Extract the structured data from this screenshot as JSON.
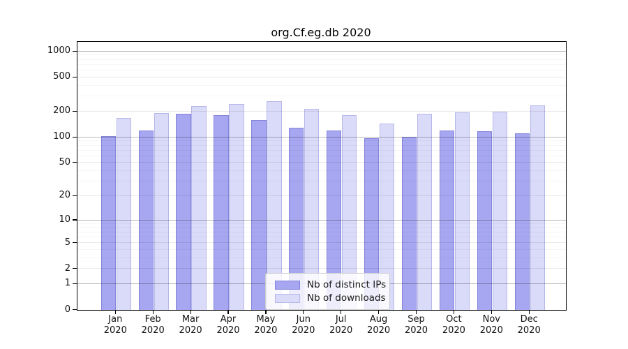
{
  "chart_data": {
    "type": "bar",
    "title": "org.Cf.eg.db 2020",
    "x": {
      "months": [
        "Jan",
        "Feb",
        "Mar",
        "Apr",
        "May",
        "Jun",
        "Jul",
        "Aug",
        "Sep",
        "Oct",
        "Nov",
        "Dec"
      ],
      "year": "2020"
    },
    "y_axis": {
      "scale": "log1p",
      "ticks": [
        0,
        1,
        2,
        5,
        10,
        20,
        50,
        100,
        200,
        500,
        1000
      ],
      "minor_ticks": [
        3,
        4,
        6,
        7,
        8,
        9,
        30,
        40,
        60,
        70,
        80,
        90,
        300,
        400,
        600,
        700,
        800,
        900
      ],
      "emphasized_ticks": [
        1,
        10,
        100,
        1000
      ],
      "range_max": 1300
    },
    "series": [
      {
        "name": "Nb of distinct IPs",
        "color": "#a6a6f1",
        "edge_color": "rgba(90,90,190,0.45)",
        "values": [
          104,
          120,
          187,
          181,
          160,
          129,
          120,
          97,
          101,
          120,
          118,
          112
        ]
      },
      {
        "name": "Nb of downloads",
        "color": "#dadaf9",
        "edge_color": "rgba(140,140,215,0.45)",
        "values": [
          168,
          192,
          233,
          244,
          264,
          215,
          181,
          145,
          188,
          197,
          199,
          238
        ]
      }
    ],
    "legend_position": "bottom-center",
    "grid": {
      "on": true
    }
  }
}
